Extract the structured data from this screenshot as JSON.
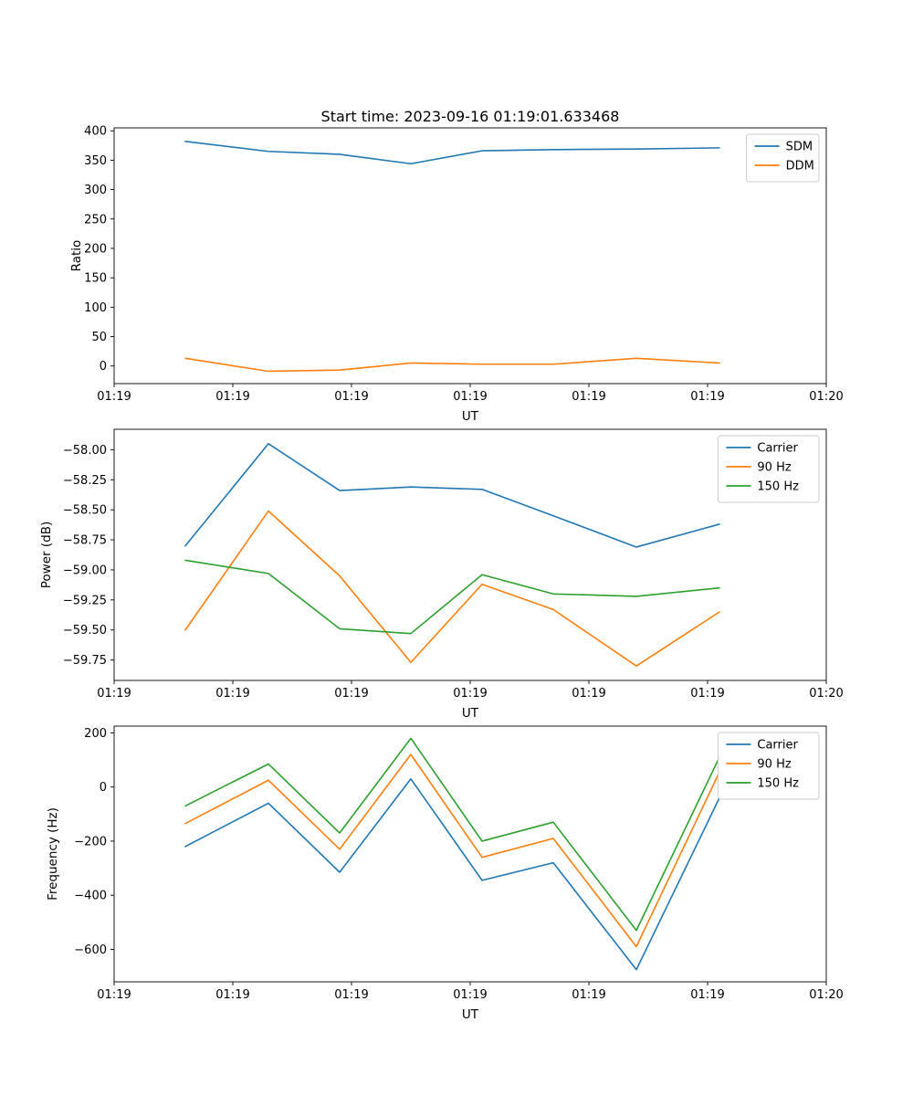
{
  "figure": {
    "title": "Start time: 2023-09-16 01:19:01.633468",
    "background": "#ffffff"
  },
  "chart_data": [
    {
      "type": "line",
      "title": "Start time: 2023-09-16 01:19:01.633468",
      "xlabel": "UT",
      "ylabel": "Ratio",
      "x_seconds": [
        6,
        13,
        19,
        25,
        31,
        37,
        44,
        51
      ],
      "xlim_seconds": [
        0,
        60
      ],
      "xticks_seconds": [
        0,
        10,
        20,
        30,
        40,
        50,
        60
      ],
      "xtick_labels": [
        "01:19",
        "01:19",
        "01:19",
        "01:19",
        "01:19",
        "01:19",
        "01:20"
      ],
      "ylim": [
        -30,
        405
      ],
      "yticks": [
        0,
        50,
        100,
        150,
        200,
        250,
        300,
        350,
        400
      ],
      "ytick_labels": [
        "0",
        "50",
        "100",
        "150",
        "200",
        "250",
        "300",
        "350",
        "400"
      ],
      "grid": false,
      "legend_position": "upper right",
      "series": [
        {
          "name": "SDM",
          "color": "#1f77b4",
          "values": [
            382,
            365,
            360,
            344,
            366,
            368,
            369,
            371
          ]
        },
        {
          "name": "DDM",
          "color": "#ff7f0e",
          "values": [
            13,
            -9,
            -7,
            5,
            3,
            3,
            13,
            5
          ]
        }
      ]
    },
    {
      "type": "line",
      "title": "",
      "xlabel": "UT",
      "ylabel": "Power (dB)",
      "x_seconds": [
        6,
        13,
        19,
        25,
        31,
        37,
        44,
        51
      ],
      "xlim_seconds": [
        0,
        60
      ],
      "xticks_seconds": [
        0,
        10,
        20,
        30,
        40,
        50,
        60
      ],
      "xtick_labels": [
        "01:19",
        "01:19",
        "01:19",
        "01:19",
        "01:19",
        "01:19",
        "01:20"
      ],
      "ylim": [
        -59.92,
        -57.83
      ],
      "yticks": [
        -59.75,
        -59.5,
        -59.25,
        -59.0,
        -58.75,
        -58.5,
        -58.25,
        -58.0
      ],
      "ytick_labels": [
        "−59.75",
        "−59.50",
        "−59.25",
        "−59.00",
        "−58.75",
        "−58.50",
        "−58.25",
        "−58.00"
      ],
      "grid": false,
      "legend_position": "upper right",
      "series": [
        {
          "name": "Carrier",
          "color": "#1f77b4",
          "values": [
            -58.8,
            -57.95,
            -58.34,
            -58.31,
            -58.33,
            -58.55,
            -58.81,
            -58.62
          ]
        },
        {
          "name": "90 Hz",
          "color": "#ff7f0e",
          "values": [
            -59.5,
            -58.51,
            -59.05,
            -59.77,
            -59.12,
            -59.33,
            -59.8,
            -59.35
          ]
        },
        {
          "name": "150 Hz",
          "color": "#2ca02c",
          "values": [
            -58.92,
            -59.03,
            -59.49,
            -59.53,
            -59.04,
            -59.2,
            -59.22,
            -59.15
          ]
        }
      ]
    },
    {
      "type": "line",
      "title": "",
      "xlabel": "UT",
      "ylabel": "Frequency (Hz)",
      "x_seconds": [
        6,
        13,
        19,
        25,
        31,
        37,
        44,
        51
      ],
      "xlim_seconds": [
        0,
        60
      ],
      "xticks_seconds": [
        0,
        10,
        20,
        30,
        40,
        50,
        60
      ],
      "xtick_labels": [
        "01:19",
        "01:19",
        "01:19",
        "01:19",
        "01:19",
        "01:19",
        "01:20"
      ],
      "ylim": [
        -720,
        225
      ],
      "yticks": [
        -600,
        -400,
        -200,
        0,
        200
      ],
      "ytick_labels": [
        "−600",
        "−400",
        "−200",
        "0",
        "200"
      ],
      "grid": false,
      "legend_position": "upper right",
      "series": [
        {
          "name": "Carrier",
          "color": "#1f77b4",
          "values": [
            -220,
            -60,
            -315,
            30,
            -345,
            -280,
            -675,
            -40
          ]
        },
        {
          "name": "90 Hz",
          "color": "#ff7f0e",
          "values": [
            -135,
            25,
            -230,
            120,
            -260,
            -190,
            -590,
            55
          ]
        },
        {
          "name": "150 Hz",
          "color": "#2ca02c",
          "values": [
            -70,
            85,
            -170,
            180,
            -200,
            -130,
            -530,
            110
          ]
        }
      ]
    }
  ]
}
